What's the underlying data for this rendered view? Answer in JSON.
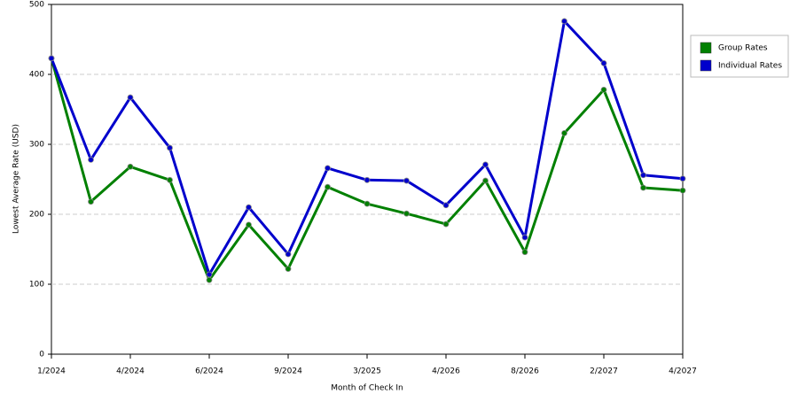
{
  "chart_data": {
    "type": "line",
    "x_label": "Month of Check In",
    "y_label": "Lowest Average Rate (USD)",
    "categories": [
      "1/2024",
      null,
      "4/2024",
      null,
      "6/2024",
      null,
      "9/2024",
      null,
      "3/2025",
      null,
      "4/2026",
      null,
      "8/2026",
      null,
      "2/2027",
      null,
      "4/2027"
    ],
    "series": [
      {
        "name": "Group Rates",
        "color": "#008000",
        "values": [
          423,
          218,
          268,
          249,
          106,
          185,
          122,
          239,
          215,
          201,
          186,
          248,
          146,
          316,
          378,
          238,
          234
        ]
      },
      {
        "name": "Individual Rates",
        "color": "#0000cc",
        "values": [
          423,
          278,
          367,
          295,
          114,
          210,
          143,
          266,
          249,
          248,
          213,
          271,
          167,
          476,
          416,
          256,
          251
        ]
      }
    ],
    "ylim": [
      0,
      500
    ],
    "yticks": [
      0,
      100,
      200,
      300,
      400,
      500
    ],
    "grid": true,
    "legend": "right"
  }
}
